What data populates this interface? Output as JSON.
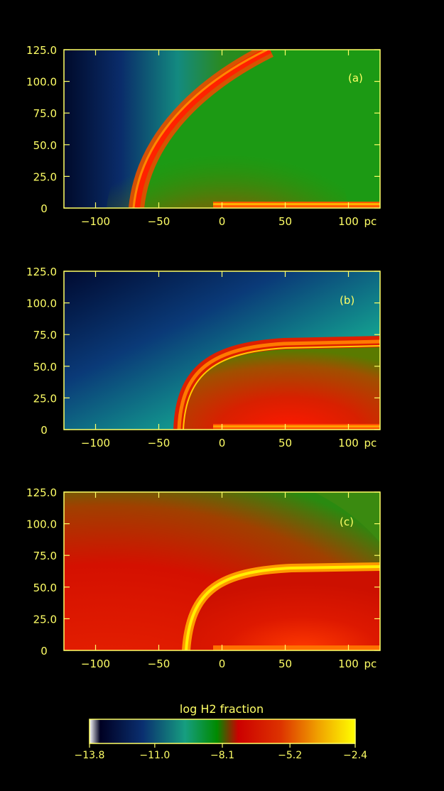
{
  "chart_data": [
    {
      "type": "heatmap",
      "panel_label": "(a)",
      "x_ticks": [
        "-100",
        "-50",
        "0",
        "50",
        "100"
      ],
      "x_unit": "pc",
      "y_ticks": [
        "0",
        "25.0",
        "50.0",
        "75.0",
        "100.0",
        "125.0"
      ],
      "xlim": [
        -125,
        125
      ],
      "ylim": [
        0,
        125
      ],
      "front": {
        "x_at_axis": -68,
        "y_at_right_edge": 125
      },
      "background": "green",
      "left_side": "dark blue"
    },
    {
      "type": "heatmap",
      "panel_label": "(b)",
      "x_ticks": [
        "-100",
        "-50",
        "0",
        "50",
        "100"
      ],
      "x_unit": "pc",
      "y_ticks": [
        "0",
        "25.0",
        "50.0",
        "75.0",
        "100.0",
        "125.0"
      ],
      "xlim": [
        -125,
        125
      ],
      "ylim": [
        0,
        125
      ],
      "front": {
        "x_at_axis": -33,
        "y_at_right_edge": 68
      },
      "background": "blue-green",
      "left_side": "dark blue"
    },
    {
      "type": "heatmap",
      "panel_label": "(c)",
      "x_ticks": [
        "-100",
        "-50",
        "0",
        "50",
        "100"
      ],
      "x_unit": "pc",
      "y_ticks": [
        "0",
        "25.0",
        "50.0",
        "75.0",
        "100.0",
        "125.0"
      ],
      "xlim": [
        -125,
        125
      ],
      "ylim": [
        0,
        125
      ],
      "front": {
        "x_at_axis": -28,
        "y_at_right_edge": 64
      },
      "background": "red",
      "left_side": "red"
    }
  ],
  "colorbar": {
    "title": "log H2 fraction",
    "ticks": [
      "-13.8",
      "-11.0",
      "-8.1",
      "-5.2",
      "-2.4"
    ],
    "range": [
      -13.8,
      -2.4
    ],
    "colors": [
      "#ffffff",
      "#000033",
      "#0a2a70",
      "#17a07a",
      "#008800",
      "#d00000",
      "#e06000",
      "#ffff00"
    ]
  },
  "colors": {
    "axis": "#ffff66",
    "text": "#ffff66",
    "background": "#000000"
  }
}
